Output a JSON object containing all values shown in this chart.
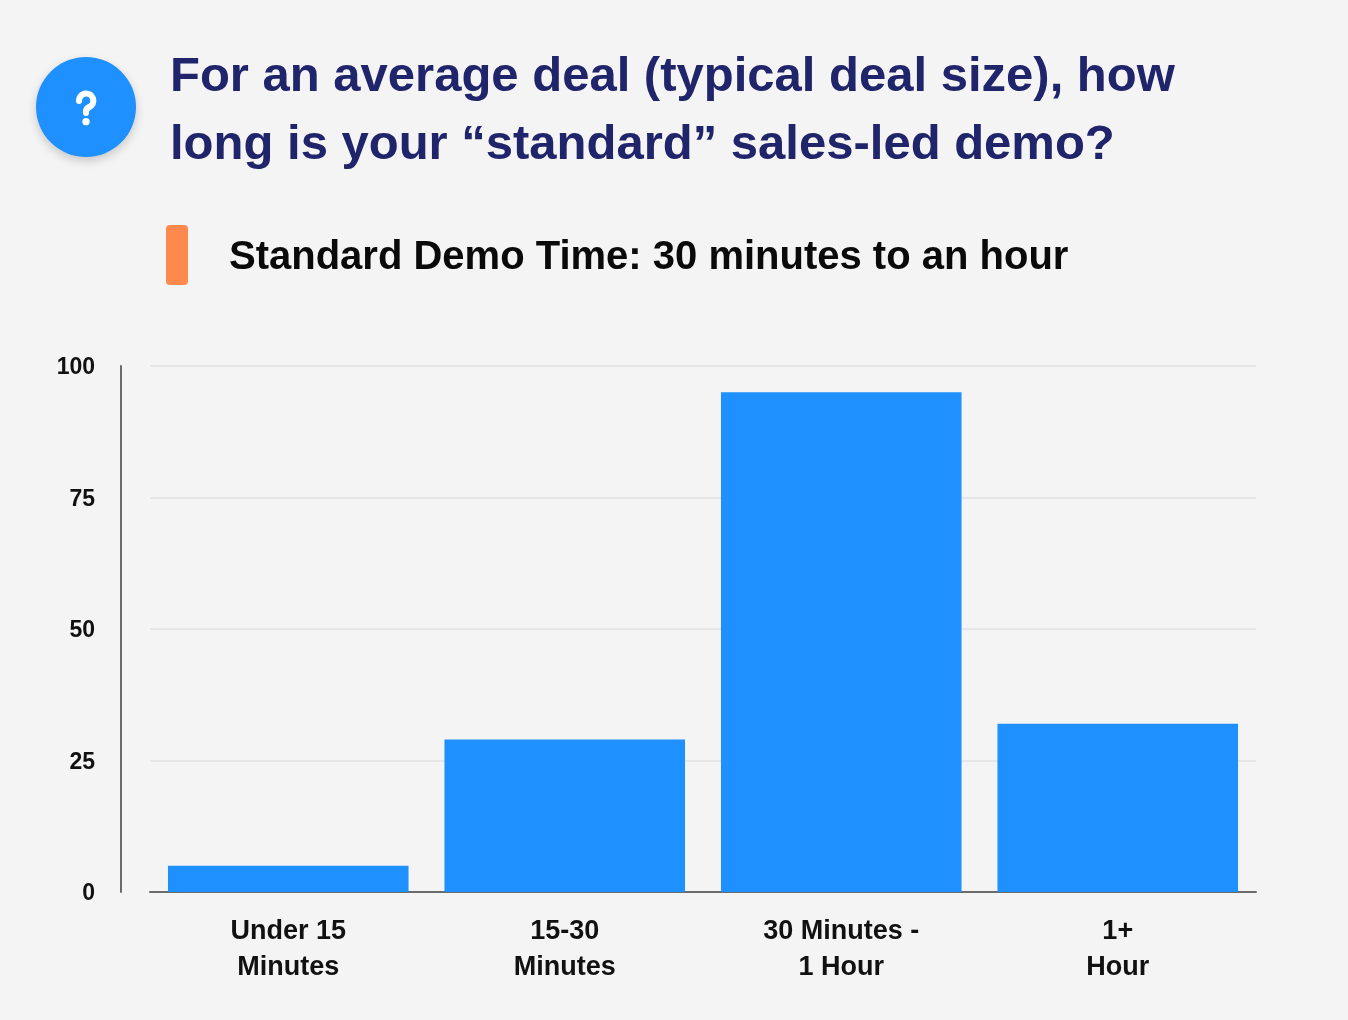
{
  "chart_data": {
    "type": "bar",
    "title": "For an average deal (typical deal size), how long is your “standard” sales-led demo?",
    "subtitle": "Standard Demo Time: 30 minutes to an hour",
    "categories": [
      "Under 15\nMinutes",
      "15-30\nMinutes",
      "30 Minutes -\n1 Hour",
      "1+\nHour"
    ],
    "values": [
      5,
      29,
      95,
      32
    ],
    "color": "#1e90ff",
    "ylim": [
      0,
      100
    ],
    "yticks": [
      0,
      25,
      50,
      75,
      100
    ],
    "grid": "y"
  }
}
